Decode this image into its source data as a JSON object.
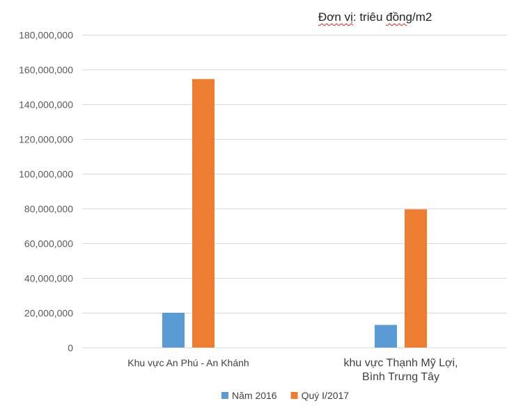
{
  "unit_note": {
    "part1": "Đơn vị",
    "part2": ": triêu ",
    "part3": "đồng",
    "part4": "/m2"
  },
  "chart_data": {
    "type": "bar",
    "title": "",
    "xlabel": "",
    "ylabel": "",
    "ylim": [
      0,
      180000000
    ],
    "yticks": [
      0,
      20000000,
      40000000,
      60000000,
      80000000,
      100000000,
      120000000,
      140000000,
      160000000,
      180000000
    ],
    "ytick_labels": [
      "0",
      "20,000,000",
      "40,000,000",
      "60,000,000",
      "80,000,000",
      "100,000,000",
      "120,000,000",
      "140,000,000",
      "160,000,000",
      "180,000,000"
    ],
    "categories": [
      [
        "Khu vực An Phú - An Khánh"
      ],
      [
        "khu vực Thạnh Mỹ Lợi,",
        "Bình Trưng Tây"
      ]
    ],
    "series": [
      {
        "name": "Năm 2016",
        "color": "#5b9bd5",
        "values": [
          20000000,
          13000000
        ]
      },
      {
        "name": "Quý I/2017",
        "color": "#ed7d31",
        "values": [
          154500000,
          79500000
        ]
      }
    ],
    "grid": true,
    "legend_position": "bottom"
  }
}
